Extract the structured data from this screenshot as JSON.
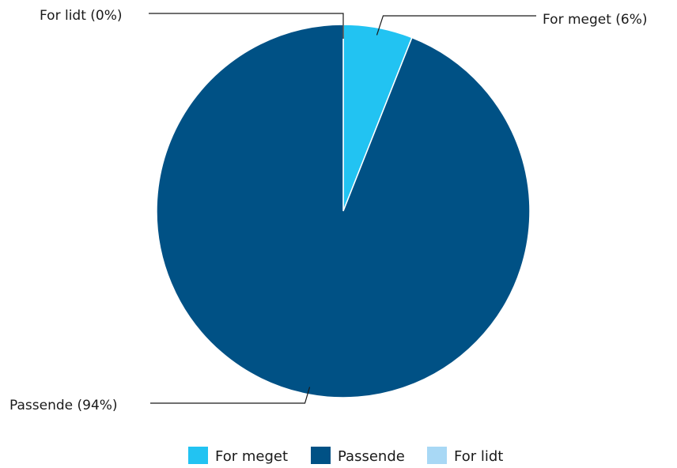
{
  "chart_data": {
    "type": "pie",
    "slices": [
      {
        "label": "For meget",
        "value": 6,
        "color": "#22c3f2",
        "data_label": "For meget (6%)"
      },
      {
        "label": "Passende",
        "value": 94,
        "color": "#005185",
        "data_label": "Passende (94%)"
      },
      {
        "label": "For lidt",
        "value": 0,
        "color": "#a8d8f5",
        "data_label": "For lidt (0%)"
      }
    ],
    "legend": {
      "position": "bottom",
      "entries": [
        "For meget",
        "Passende",
        "For lidt"
      ]
    }
  }
}
